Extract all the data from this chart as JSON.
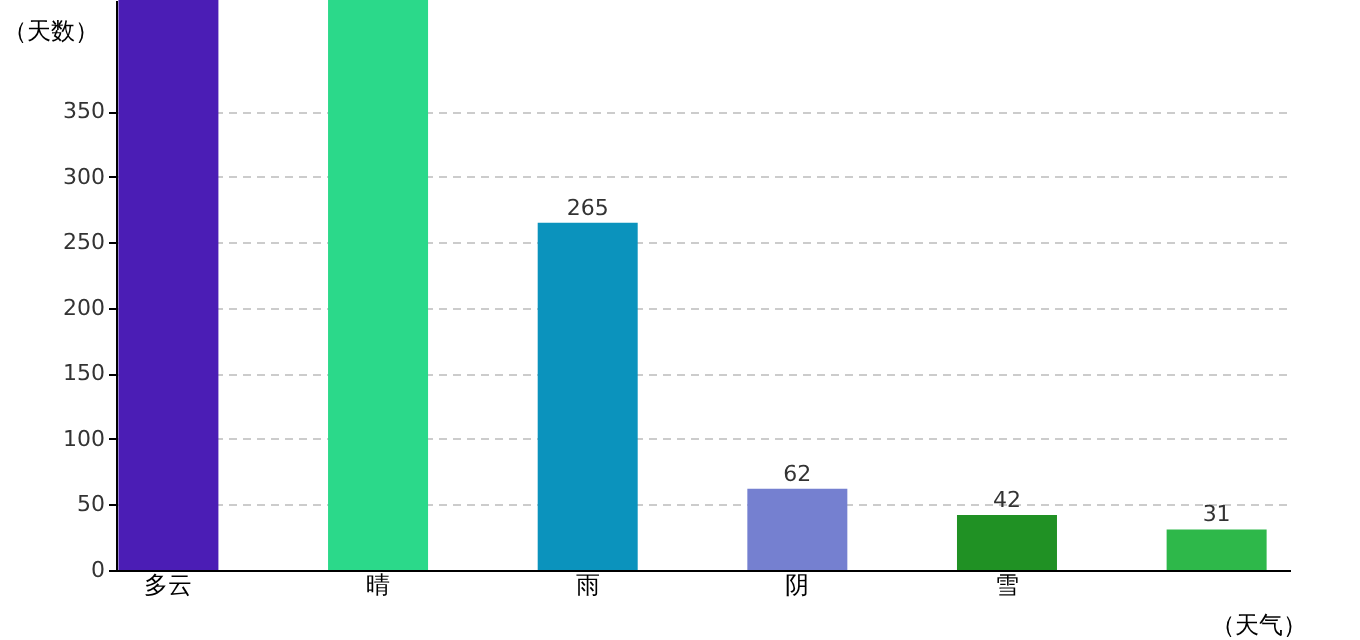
{
  "chart_data": {
    "type": "bar",
    "xlabel": "（天气）",
    "ylabel": "（天数）",
    "categories": [
      "多云",
      "晴",
      "雨",
      "阴",
      "雪",
      null
    ],
    "values": [
      435,
      435,
      265,
      62,
      42,
      31
    ],
    "value_labels": [
      null,
      null,
      "265",
      "62",
      "42",
      "31"
    ],
    "colors": [
      "#4b1db5",
      "#2bd98a",
      "#0b93bd",
      "#7580d0",
      "#209124",
      "#2eb84a"
    ],
    "ylim": [
      0,
      435
    ],
    "yticks": [
      0,
      50,
      100,
      150,
      200,
      250,
      300,
      350
    ],
    "grid": "y"
  }
}
